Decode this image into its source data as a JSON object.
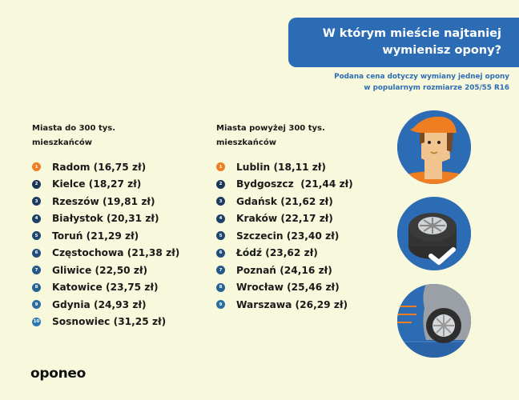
{
  "header": {
    "title_line1": "W którym mieście najtaniej",
    "title_line2": "wymienisz opony?",
    "subtitle_line1": "Podana cena dotyczy wymiany jednej opony",
    "subtitle_line2": "w popularnym rozmiarze 205/55 R16"
  },
  "colors": {
    "background": "#f8f8dc",
    "accent_blue": "#2b6cb4",
    "rank_first": "#ef7d22",
    "rank_dark": "#1c3a5c",
    "rank_light": "#2f77b9",
    "text": "#1a1a1a"
  },
  "small_cities": {
    "heading_line1": "Miasta do 300 tys.",
    "heading_line2": "mieszkańców",
    "items": [
      {
        "rank": "1",
        "label": "Radom (16,75 zł)",
        "color": "#ef7d22"
      },
      {
        "rank": "2",
        "label": "Kielce (18,27 zł)",
        "color": "#1c3658"
      },
      {
        "rank": "3",
        "label": "Rzeszów (19,81 zł)",
        "color": "#1d3b60"
      },
      {
        "rank": "4",
        "label": "Białystok (20,31 zł)",
        "color": "#1e4068"
      },
      {
        "rank": "5",
        "label": "Toruń (21,29 zł)",
        "color": "#1f4670"
      },
      {
        "rank": "6",
        "label": "Częstochowa (21,38 zł)",
        "color": "#214e7c"
      },
      {
        "rank": "7",
        "label": "Gliwice (22,50 zł)",
        "color": "#235888"
      },
      {
        "rank": "8",
        "label": "Katowice (23,75 zł)",
        "color": "#266296"
      },
      {
        "rank": "9",
        "label": "Gdynia (24,93 zł)",
        "color": "#2a6ca4"
      },
      {
        "rank": "10",
        "label": "Sosnowiec (31,25 zł)",
        "color": "#2f77b4"
      }
    ]
  },
  "large_cities": {
    "heading_line1": "Miasta powyżej 300 tys.",
    "heading_line2": "mieszkańców",
    "items": [
      {
        "rank": "1",
        "label": "Lublin (18,11 zł)",
        "color": "#ef7d22"
      },
      {
        "rank": "2",
        "label": "Bydgoszcz  (21,44 zł)",
        "color": "#1c3658"
      },
      {
        "rank": "3",
        "label": "Gdańsk (21,62 zł)",
        "color": "#1d3b60"
      },
      {
        "rank": "4",
        "label": "Kraków (22,17 zł)",
        "color": "#1e4068"
      },
      {
        "rank": "5",
        "label": "Szczecin (23,40 zł)",
        "color": "#1f4670"
      },
      {
        "rank": "6",
        "label": "Łódź (23,62 zł)",
        "color": "#214e7c"
      },
      {
        "rank": "7",
        "label": "Poznań (24,16 zł)",
        "color": "#235888"
      },
      {
        "rank": "8",
        "label": "Wrocław (25,46 zł)",
        "color": "#266296"
      },
      {
        "rank": "9",
        "label": "Warszawa (26,29 zł)",
        "color": "#2a6ca4"
      }
    ]
  },
  "illustrations": [
    {
      "icon": "mechanic-avatar-icon"
    },
    {
      "icon": "tires-check-icon"
    },
    {
      "icon": "car-wheel-speed-icon"
    }
  ],
  "footer": {
    "logo": "oponeo"
  }
}
